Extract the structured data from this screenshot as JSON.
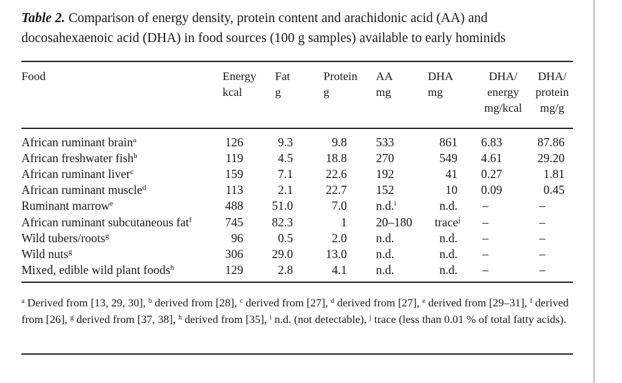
{
  "caption": {
    "label": "Table 2.",
    "text": " Comparison of energy density, protein content and arachidonic acid (AA) and docosahexaenoic acid (DHA) in food sources (100 g samples) available to early hominids"
  },
  "headers": [
    {
      "key": "food",
      "lines": [
        "Food"
      ]
    },
    {
      "key": "energy",
      "lines": [
        "Energy",
        "kcal"
      ]
    },
    {
      "key": "fat",
      "lines": [
        "Fat",
        "g"
      ]
    },
    {
      "key": "protein",
      "lines": [
        "Protein",
        "g"
      ]
    },
    {
      "key": "aa",
      "lines": [
        "AA",
        "mg"
      ]
    },
    {
      "key": "dha",
      "lines": [
        "DHA",
        "mg"
      ]
    },
    {
      "key": "dha_energy",
      "lines": [
        "DHA/",
        "energy",
        "mg/kcal"
      ]
    },
    {
      "key": "dha_protein",
      "lines": [
        "DHA/",
        "protein",
        "mg/g"
      ]
    }
  ],
  "rows": [
    {
      "food": "African ruminant brain",
      "note": "a",
      "cells": [
        "126",
        "9.3",
        "9.8",
        "533",
        "861",
        "6.83",
        "87.86"
      ]
    },
    {
      "food": "African freshwater fish",
      "note": "b",
      "cells": [
        "119",
        "4.5",
        "18.8",
        "270",
        "549",
        "4.61",
        "29.20"
      ]
    },
    {
      "food": "African ruminant liver",
      "note": "c",
      "cells": [
        "159",
        "7.1",
        "22.6",
        "192",
        "41",
        "0.27",
        "1.81"
      ]
    },
    {
      "food": "African ruminant muscle",
      "note": "d",
      "cells": [
        "113",
        "2.1",
        "22.7",
        "152",
        "10",
        "0.09",
        "0.45"
      ]
    },
    {
      "food": "Ruminant marrow",
      "note": "e",
      "cells": [
        "488",
        "51.0",
        "7.0",
        "n.d.",
        "n.d.",
        "–",
        "–"
      ],
      "aa_note": "i"
    },
    {
      "food": "African ruminant subcutaneous fat",
      "note": "f",
      "cells": [
        "745",
        "82.3",
        "1",
        "20–180",
        "trace",
        "–",
        "–"
      ],
      "dha_note": "j"
    },
    {
      "food": "Wild tubers/roots",
      "note": "g",
      "cells": [
        "96",
        "0.5",
        "2.0",
        "n.d.",
        "n.d.",
        "–",
        "–"
      ]
    },
    {
      "food": "Wild nuts",
      "note": "g",
      "cells": [
        "306",
        "29.0",
        "13.0",
        "n.d.",
        "n.d.",
        "–",
        "–"
      ]
    },
    {
      "food": "Mixed, edible wild plant foods",
      "note": "h",
      "cells": [
        "129",
        "2.8",
        "4.1",
        "n.d.",
        "n.d.",
        "–",
        "–"
      ]
    }
  ],
  "footnotes": [
    {
      "mark": "a",
      "text": " Derived from [13, 29, 30], "
    },
    {
      "mark": "b",
      "text": " derived from [28], "
    },
    {
      "mark": "c",
      "text": " derived from [27], "
    },
    {
      "mark": "d",
      "text": " derived from [27], "
    },
    {
      "mark": "e",
      "text": " derived from [29–31], "
    },
    {
      "mark": "f",
      "text": " derived from [26], "
    },
    {
      "mark": "g",
      "text": " derived from [37, 38], "
    },
    {
      "mark": "h",
      "text": " derived from [35], "
    },
    {
      "mark": "i",
      "text": " n.d. (not detectable), "
    },
    {
      "mark": "j",
      "text": " trace (less than 0.01 % of total fatty acids)."
    }
  ]
}
